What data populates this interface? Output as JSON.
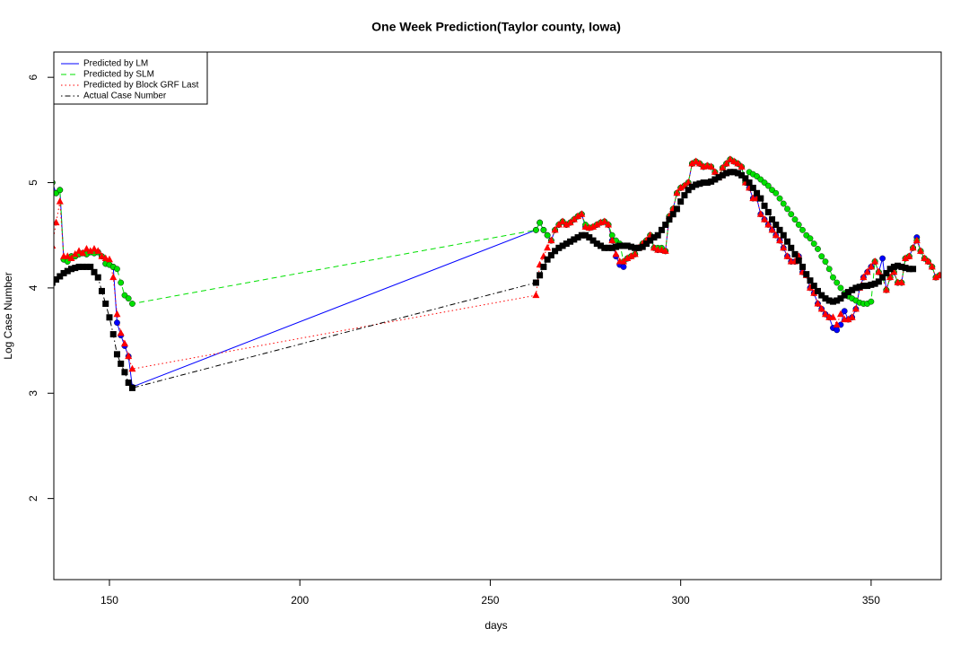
{
  "chart_data": {
    "type": "line",
    "title": "One Week Prediction(Taylor county, Iowa)",
    "x_label": "days",
    "y_label": "Log Case Number",
    "xlim": [
      135.4,
      368.4
    ],
    "ylim": [
      1.23,
      6.24
    ],
    "xticks": [
      150,
      200,
      250,
      300,
      350
    ],
    "yticks": [
      2,
      3,
      4,
      5,
      6
    ],
    "legend_position": "topleft",
    "x": [
      135,
      136,
      137,
      138,
      139,
      140,
      141,
      142,
      143,
      144,
      145,
      146,
      147,
      148,
      149,
      150,
      151,
      152,
      153,
      154,
      155,
      156,
      262,
      263,
      264,
      265,
      266,
      267,
      268,
      269,
      270,
      271,
      272,
      273,
      274,
      275,
      276,
      277,
      278,
      279,
      280,
      281,
      282,
      283,
      284,
      285,
      286,
      287,
      288,
      289,
      290,
      291,
      292,
      293,
      294,
      295,
      296,
      297,
      298,
      299,
      300,
      301,
      302,
      303,
      304,
      305,
      306,
      307,
      308,
      309,
      310,
      311,
      312,
      313,
      314,
      315,
      316,
      317,
      318,
      319,
      320,
      321,
      322,
      323,
      324,
      325,
      326,
      327,
      328,
      329,
      330,
      331,
      332,
      333,
      334,
      335,
      336,
      337,
      338,
      339,
      340,
      341,
      342,
      343,
      344,
      345,
      346,
      347,
      348,
      349,
      350,
      351,
      352,
      353,
      354,
      355,
      356,
      357,
      358,
      359,
      360,
      361,
      362,
      363,
      364,
      365,
      366,
      367,
      368
    ],
    "series": [
      {
        "name": "Predicted by LM",
        "color": "#0000ff",
        "dash": "solid",
        "marker": "circle",
        "values": [
          5.0,
          4.9,
          4.93,
          4.27,
          4.26,
          4.3,
          4.3,
          4.32,
          4.33,
          4.32,
          4.34,
          4.33,
          4.34,
          4.3,
          4.23,
          4.22,
          4.2,
          3.67,
          3.55,
          3.45,
          3.35,
          3.06,
          4.55,
          4.62,
          4.55,
          4.5,
          4.45,
          4.55,
          4.6,
          4.63,
          4.6,
          4.62,
          4.65,
          4.68,
          4.7,
          4.58,
          4.57,
          4.58,
          4.6,
          4.62,
          4.63,
          4.6,
          4.45,
          4.3,
          4.22,
          4.2,
          4.28,
          4.3,
          4.32,
          4.38,
          4.42,
          4.45,
          4.5,
          4.38,
          4.36,
          4.36,
          4.35,
          4.68,
          4.75,
          4.9,
          4.95,
          4.97,
          5.0,
          5.18,
          5.2,
          5.18,
          5.15,
          5.16,
          5.15,
          5.1,
          5.05,
          5.14,
          5.18,
          5.22,
          5.2,
          5.18,
          5.15,
          5.0,
          4.95,
          4.85,
          4.85,
          4.7,
          4.65,
          4.6,
          4.55,
          4.5,
          4.45,
          4.38,
          4.3,
          4.25,
          4.25,
          4.3,
          4.15,
          4.12,
          4.0,
          3.95,
          3.85,
          3.8,
          3.75,
          3.72,
          3.62,
          3.6,
          3.65,
          3.78,
          3.7,
          3.72,
          3.8,
          4.0,
          4.1,
          4.15,
          4.2,
          4.25,
          4.15,
          4.28,
          3.98,
          4.1,
          4.15,
          4.05,
          4.05,
          4.28,
          4.3,
          4.38,
          4.48,
          4.35,
          4.28,
          4.25,
          4.2,
          4.1,
          4.12
        ]
      },
      {
        "name": "Predicted by SLM",
        "color": "#00e000",
        "dash": "dashed",
        "marker": "circle",
        "values": [
          5.0,
          4.9,
          4.93,
          4.27,
          4.25,
          4.3,
          4.3,
          4.32,
          4.33,
          4.32,
          4.34,
          4.33,
          4.34,
          4.3,
          4.23,
          4.22,
          4.2,
          4.18,
          4.05,
          3.93,
          3.9,
          3.85,
          4.55,
          4.62,
          4.55,
          4.5,
          4.45,
          4.55,
          4.6,
          4.63,
          4.6,
          4.62,
          4.65,
          4.68,
          4.7,
          4.6,
          4.57,
          4.58,
          4.6,
          4.62,
          4.63,
          4.6,
          4.5,
          4.45,
          4.42,
          4.25,
          4.28,
          4.3,
          4.32,
          4.38,
          4.42,
          4.45,
          4.5,
          4.38,
          4.38,
          4.38,
          4.35,
          4.68,
          4.75,
          4.9,
          4.95,
          4.97,
          5.0,
          5.18,
          5.2,
          5.18,
          5.15,
          5.16,
          5.15,
          5.1,
          5.05,
          5.14,
          5.18,
          5.22,
          5.2,
          5.18,
          5.15,
          5.0,
          5.1,
          5.08,
          5.06,
          5.03,
          5.0,
          4.97,
          4.93,
          4.9,
          4.85,
          4.8,
          4.75,
          4.7,
          4.65,
          4.6,
          4.55,
          4.5,
          4.47,
          4.42,
          4.37,
          4.3,
          4.25,
          4.18,
          4.1,
          4.05,
          4.0,
          3.95,
          3.92,
          3.9,
          3.88,
          3.86,
          3.85,
          3.85,
          3.87,
          4.25,
          4.15,
          4.1,
          3.98,
          4.1,
          4.15,
          4.05,
          4.05,
          4.28,
          4.3,
          4.38,
          4.45,
          4.35,
          4.28,
          4.25,
          4.2,
          4.1,
          4.12
        ]
      },
      {
        "name": "Predicted by Block GRF Last",
        "color": "#ff0000",
        "dash": "dotted",
        "marker": "triangle",
        "values": [
          4.4,
          4.62,
          4.82,
          4.3,
          4.3,
          4.28,
          4.32,
          4.35,
          4.33,
          4.37,
          4.35,
          4.37,
          4.35,
          4.3,
          4.28,
          4.27,
          4.1,
          3.75,
          3.57,
          3.47,
          3.35,
          3.23,
          3.93,
          4.22,
          4.3,
          4.38,
          4.45,
          4.55,
          4.6,
          4.63,
          4.6,
          4.62,
          4.65,
          4.68,
          4.7,
          4.58,
          4.57,
          4.58,
          4.6,
          4.62,
          4.63,
          4.6,
          4.45,
          4.32,
          4.25,
          4.25,
          4.28,
          4.3,
          4.32,
          4.38,
          4.42,
          4.45,
          4.5,
          4.38,
          4.36,
          4.36,
          4.35,
          4.68,
          4.75,
          4.9,
          4.95,
          4.97,
          5.0,
          5.18,
          5.2,
          5.18,
          5.15,
          5.16,
          5.15,
          5.1,
          5.05,
          5.14,
          5.18,
          5.22,
          5.2,
          5.18,
          5.15,
          5.0,
          4.95,
          4.85,
          4.85,
          4.7,
          4.65,
          4.6,
          4.55,
          4.5,
          4.45,
          4.38,
          4.3,
          4.25,
          4.25,
          4.3,
          4.15,
          4.12,
          4.0,
          3.95,
          3.85,
          3.8,
          3.75,
          3.72,
          3.72,
          3.65,
          3.75,
          3.7,
          3.7,
          3.72,
          3.8,
          4.0,
          4.1,
          4.15,
          4.2,
          4.25,
          4.15,
          4.1,
          3.98,
          4.1,
          4.15,
          4.05,
          4.05,
          4.28,
          4.3,
          4.38,
          4.45,
          4.35,
          4.28,
          4.25,
          4.2,
          4.1,
          4.12
        ]
      },
      {
        "name": "Actual Case Number",
        "color": "#000000",
        "dash": "dotdash",
        "marker": "square",
        "values": [
          4.05,
          4.08,
          4.11,
          4.14,
          4.16,
          4.18,
          4.19,
          4.2,
          4.2,
          4.2,
          4.2,
          4.15,
          4.1,
          3.97,
          3.85,
          3.72,
          3.56,
          3.37,
          3.28,
          3.2,
          3.1,
          3.05,
          4.05,
          4.12,
          4.2,
          4.27,
          4.31,
          4.35,
          4.38,
          4.4,
          4.42,
          4.44,
          4.46,
          4.48,
          4.5,
          4.5,
          4.48,
          4.45,
          4.42,
          4.4,
          4.38,
          4.38,
          4.38,
          4.39,
          4.4,
          4.4,
          4.4,
          4.39,
          4.38,
          4.38,
          4.39,
          4.42,
          4.45,
          4.48,
          4.5,
          4.55,
          4.6,
          4.65,
          4.7,
          4.75,
          4.82,
          4.88,
          4.93,
          4.96,
          4.98,
          4.99,
          5.0,
          5.0,
          5.01,
          5.03,
          5.05,
          5.07,
          5.09,
          5.1,
          5.1,
          5.09,
          5.07,
          5.04,
          5.0,
          4.95,
          4.9,
          4.85,
          4.78,
          4.72,
          4.65,
          4.6,
          4.55,
          4.5,
          4.44,
          4.38,
          4.32,
          4.26,
          4.2,
          4.13,
          4.07,
          4.02,
          3.97,
          3.93,
          3.9,
          3.88,
          3.87,
          3.88,
          3.9,
          3.93,
          3.96,
          3.98,
          4.0,
          4.01,
          4.02,
          4.02,
          4.03,
          4.04,
          4.06,
          4.1,
          4.14,
          4.18,
          4.2,
          4.21,
          4.2,
          4.19,
          4.18,
          4.18,
          null,
          null,
          null,
          null,
          null,
          null,
          null
        ]
      }
    ]
  }
}
